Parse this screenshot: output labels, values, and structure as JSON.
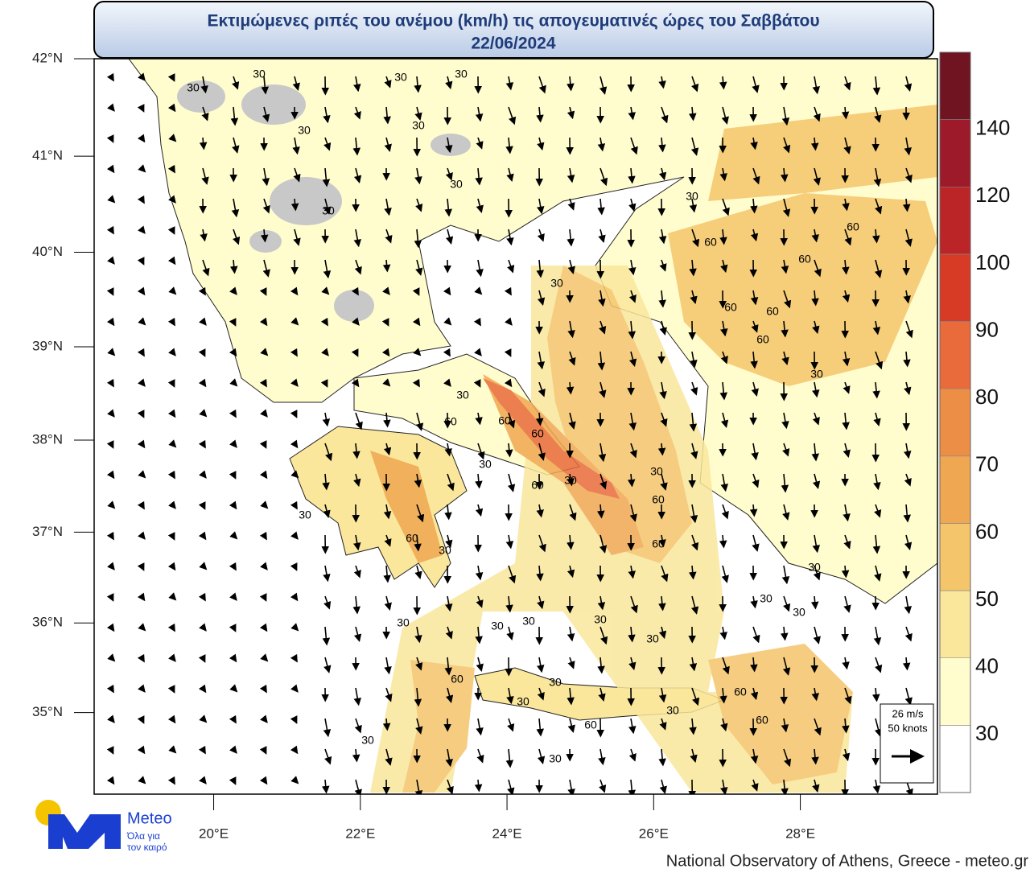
{
  "header": {
    "title": "Εκτιμώμενες ριπές του ανέμου (km/h) τις απογευματινές ώρες του Σαββάτου",
    "date": "22/06/2024"
  },
  "map": {
    "lon_range": [
      18.37,
      29.87
    ],
    "lat_range": [
      34.08,
      42
    ],
    "lat_ticks": [
      {
        "value": 42,
        "label": "42°N"
      },
      {
        "value": 41,
        "label": "41°N"
      },
      {
        "value": 40,
        "label": "40°N"
      },
      {
        "value": 39,
        "label": "39°N"
      },
      {
        "value": 38,
        "label": "38°N"
      },
      {
        "value": 37,
        "label": "37°N"
      },
      {
        "value": 36,
        "label": "36°N"
      },
      {
        "value": 35,
        "label": "35°N"
      }
    ],
    "lon_ticks": [
      {
        "value": 20,
        "label": "20°E"
      },
      {
        "value": 22,
        "label": "22°E"
      },
      {
        "value": 24,
        "label": "24°E"
      },
      {
        "value": 26,
        "label": "26°E"
      },
      {
        "value": 28,
        "label": "28°E"
      }
    ],
    "contour_labels": [
      "30",
      "30",
      "30",
      "30",
      "30",
      "30",
      "30",
      "30",
      "30",
      "30",
      "60",
      "60",
      "60",
      "60",
      "60",
      "60",
      "30",
      "30",
      "60",
      "60",
      "60",
      "30",
      "60",
      "30",
      "30",
      "60",
      "30",
      "60",
      "30",
      "60",
      "30",
      "30",
      "30",
      "30",
      "30",
      "30",
      "30",
      "30",
      "60",
      "30",
      "30",
      "30",
      "60",
      "60",
      "60",
      "30",
      "30"
    ]
  },
  "colorbar": {
    "levels": [
      30,
      40,
      50,
      60,
      70,
      80,
      90,
      100,
      120,
      140
    ],
    "colors": [
      "#ffffff",
      "#fffccd",
      "#fae79c",
      "#f5c56b",
      "#f0a751",
      "#ec8e45",
      "#e96a3a",
      "#d83b25",
      "#bb2528",
      "#9c1a2a",
      "#701422"
    ]
  },
  "reference_vector": {
    "speed": "26 m/s",
    "knots": "50 knots"
  },
  "logo": {
    "name": "Meteo",
    "tagline_1": "Όλα για",
    "tagline_2": "τον καιρό"
  },
  "footer": {
    "credit": "National Observatory of Athens, Greece - meteo.gr"
  }
}
